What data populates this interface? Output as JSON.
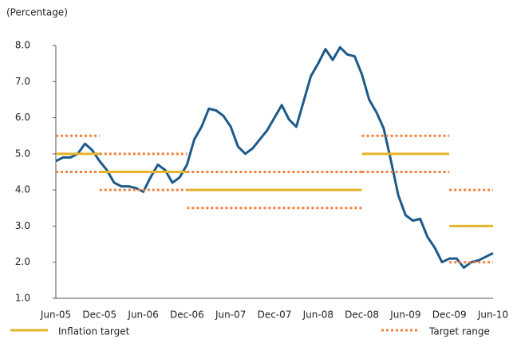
{
  "chart_data": {
    "type": "line",
    "y_label": "(Percentage)",
    "categories": [
      "Jun-05",
      null,
      null,
      null,
      null,
      null,
      "Dec-05",
      null,
      null,
      null,
      null,
      null,
      "Jun-06",
      null,
      null,
      null,
      null,
      null,
      "Dec-06",
      null,
      null,
      null,
      null,
      null,
      "Jun-07",
      null,
      null,
      null,
      null,
      null,
      "Dec-07",
      null,
      null,
      null,
      null,
      null,
      "Jun-08",
      null,
      null,
      null,
      null,
      null,
      "Dec-08",
      null,
      null,
      null,
      null,
      null,
      "Jun-09",
      null,
      null,
      null,
      null,
      null,
      "Dec-09",
      null,
      null,
      null,
      null,
      null,
      "Jun-10"
    ],
    "series": [
      {
        "color": "#1d5a8a",
        "values": [
          4.8,
          4.9,
          4.9,
          5.0,
          5.28,
          5.1,
          4.8,
          4.55,
          4.2,
          4.1,
          4.1,
          4.05,
          3.95,
          4.35,
          4.7,
          4.55,
          4.2,
          4.35,
          4.7,
          5.4,
          5.75,
          6.25,
          6.2,
          6.05,
          5.75,
          5.2,
          5.0,
          5.15,
          5.4,
          5.65,
          6.0,
          6.35,
          5.95,
          5.75,
          6.45,
          7.15,
          7.5,
          7.9,
          7.6,
          7.95,
          7.75,
          7.7,
          7.2,
          6.5,
          6.15,
          5.7,
          4.8,
          3.85,
          3.3,
          3.15,
          3.2,
          2.7,
          2.4,
          2.0,
          2.1,
          2.1,
          1.85,
          2.0,
          2.05,
          2.15,
          2.25
        ]
      },
      {
        "name": "Inflation target",
        "color": "#e6b42a",
        "step": true,
        "dash": "solid",
        "values": [
          5,
          5,
          5,
          5,
          5,
          5,
          4.5,
          4.5,
          4.5,
          4.5,
          4.5,
          4.5,
          4.5,
          4.5,
          4.5,
          4.5,
          4.5,
          4.5,
          4,
          4,
          4,
          4,
          4,
          4,
          4,
          4,
          4,
          4,
          4,
          4,
          4,
          4,
          4,
          4,
          4,
          4,
          4,
          4,
          4,
          4,
          4,
          4,
          5,
          5,
          5,
          5,
          5,
          5,
          5,
          5,
          5,
          5,
          5,
          5,
          3,
          3,
          3,
          3,
          3,
          3,
          3
        ]
      },
      {
        "name": "Target range",
        "color": "#f0803c",
        "step": true,
        "dash": "dotted",
        "values": [
          5.5,
          5.5,
          5.5,
          5.5,
          5.5,
          5.5,
          5,
          5,
          5,
          5,
          5,
          5,
          5,
          5,
          5,
          5,
          5,
          5,
          4.5,
          4.5,
          4.5,
          4.5,
          4.5,
          4.5,
          4.5,
          4.5,
          4.5,
          4.5,
          4.5,
          4.5,
          4.5,
          4.5,
          4.5,
          4.5,
          4.5,
          4.5,
          4.5,
          4.5,
          4.5,
          4.5,
          4.5,
          4.5,
          5.5,
          5.5,
          5.5,
          5.5,
          5.5,
          5.5,
          5.5,
          5.5,
          5.5,
          5.5,
          5.5,
          5.5,
          4,
          4,
          4,
          4,
          4,
          4,
          4
        ],
        "lower": [
          4.5,
          4.5,
          4.5,
          4.5,
          4.5,
          4.5,
          4,
          4,
          4,
          4,
          4,
          4,
          4,
          4,
          4,
          4,
          4,
          4,
          3.5,
          3.5,
          3.5,
          3.5,
          3.5,
          3.5,
          3.5,
          3.5,
          3.5,
          3.5,
          3.5,
          3.5,
          3.5,
          3.5,
          3.5,
          3.5,
          3.5,
          3.5,
          3.5,
          3.5,
          3.5,
          3.5,
          3.5,
          3.5,
          4.5,
          4.5,
          4.5,
          4.5,
          4.5,
          4.5,
          4.5,
          4.5,
          4.5,
          4.5,
          4.5,
          4.5,
          2,
          2,
          2,
          2,
          2,
          2,
          2
        ]
      }
    ],
    "ylim": [
      1,
      8
    ],
    "yticks": [
      {
        "value": 1,
        "label": "1.0"
      },
      {
        "value": 2,
        "label": "2.0"
      },
      {
        "value": 3,
        "label": "3.0"
      },
      {
        "value": 4,
        "label": "4.0"
      },
      {
        "value": 5,
        "label": "5.0"
      },
      {
        "value": 6,
        "label": "6.0"
      },
      {
        "value": 7,
        "label": "7.0"
      },
      {
        "value": 8,
        "label": "8.0"
      }
    ],
    "grid": false,
    "legend": "bottom"
  }
}
